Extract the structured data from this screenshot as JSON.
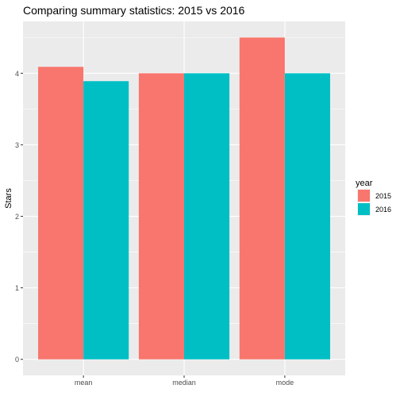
{
  "chart_data": {
    "type": "bar",
    "title": "Comparing summary statistics: 2015 vs 2016",
    "xlabel": "",
    "ylabel": "Stars",
    "categories": [
      "mean",
      "median",
      "mode"
    ],
    "series": [
      {
        "name": "2015",
        "values": [
          4.09,
          4.0,
          4.5
        ],
        "color": "#F8766D"
      },
      {
        "name": "2016",
        "values": [
          3.89,
          4.0,
          4.0
        ],
        "color": "#00BFC4"
      }
    ],
    "ylim": [
      -0.225,
      4.725
    ],
    "yticks": [
      0,
      1,
      2,
      3,
      4
    ],
    "legend": {
      "title": "year",
      "position": "right"
    },
    "grid": true,
    "panel_background": "#EBEBEB",
    "grid_color": "#FFFFFF"
  }
}
